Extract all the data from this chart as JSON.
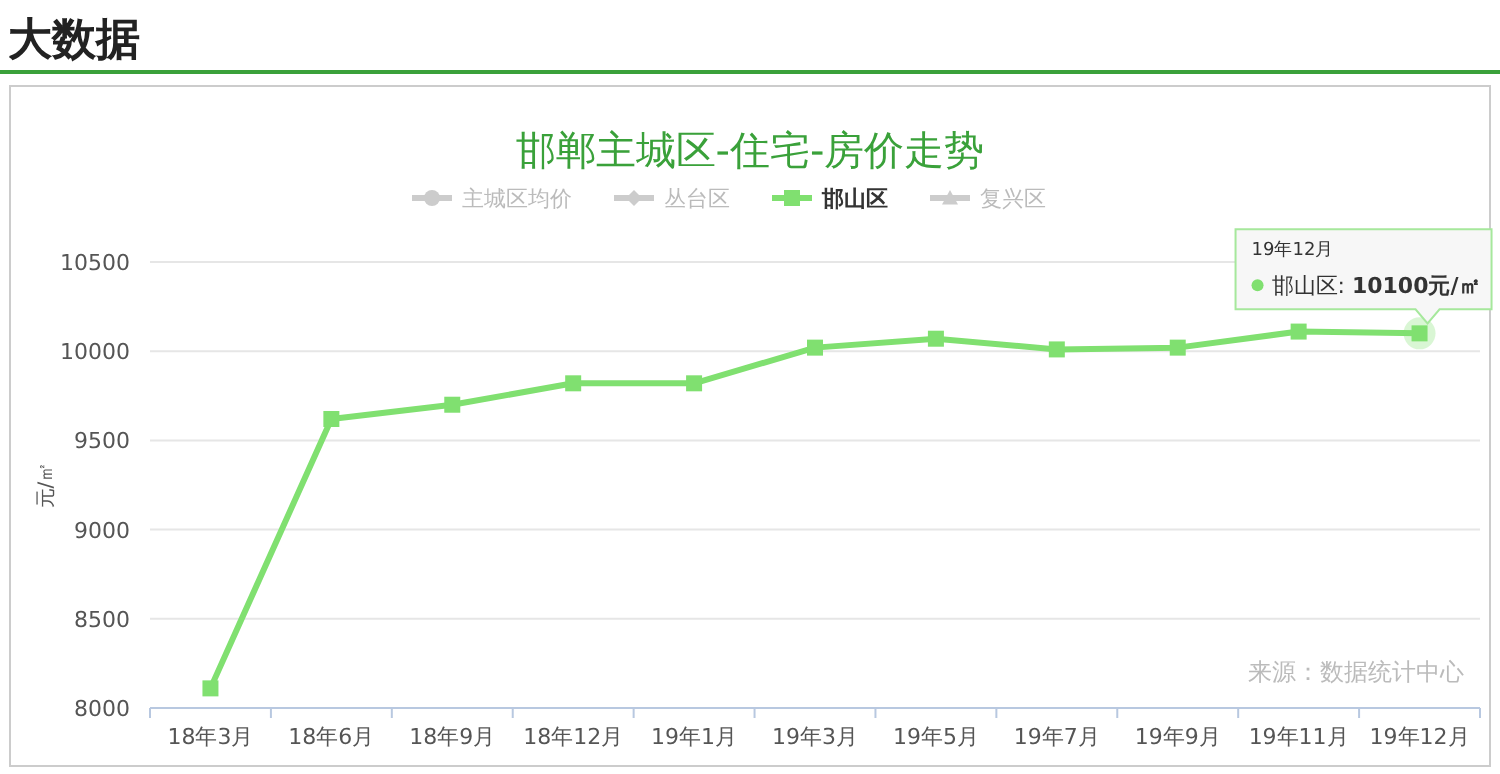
{
  "chart_data": {
    "type": "line",
    "title": "邯郸主城区-住宅-房价走势",
    "ylabel": "元/㎡",
    "categories": [
      "18年3月",
      "18年6月",
      "18年9月",
      "18年12月",
      "19年1月",
      "19年3月",
      "19年5月",
      "19年7月",
      "19年9月",
      "19年11月",
      "19年12月"
    ],
    "series": [
      {
        "name": "主城区均价",
        "color": "#cccccc",
        "marker": "circle",
        "values": [
          null,
          null,
          null,
          null,
          null,
          null,
          null,
          null,
          null,
          null,
          null
        ]
      },
      {
        "name": "丛台区",
        "color": "#cccccc",
        "marker": "diamond",
        "values": [
          null,
          null,
          null,
          null,
          null,
          null,
          null,
          null,
          null,
          null,
          null
        ]
      },
      {
        "name": "邯山区",
        "color": "#80e070",
        "marker": "square",
        "values": [
          8110,
          9620,
          9700,
          9820,
          9820,
          10020,
          10070,
          10010,
          10020,
          10110,
          10100
        ]
      },
      {
        "name": "复兴区",
        "color": "#cccccc",
        "marker": "triangle",
        "values": [
          null,
          null,
          null,
          null,
          null,
          null,
          null,
          null,
          null,
          null,
          null
        ]
      }
    ],
    "ylim": [
      8000,
      10500
    ],
    "yticks": [
      8000,
      8500,
      9000,
      9500,
      10000,
      10500
    ],
    "grid": "y",
    "legend": "top",
    "line_style": "solid",
    "annotations": [
      "大数据",
      "19年12月",
      {
        "text": "邯山区: **10100元/㎡**",
        "x": "19年12月",
        "y": 10100
      },
      "来源：数据统计中心"
    ]
  }
}
